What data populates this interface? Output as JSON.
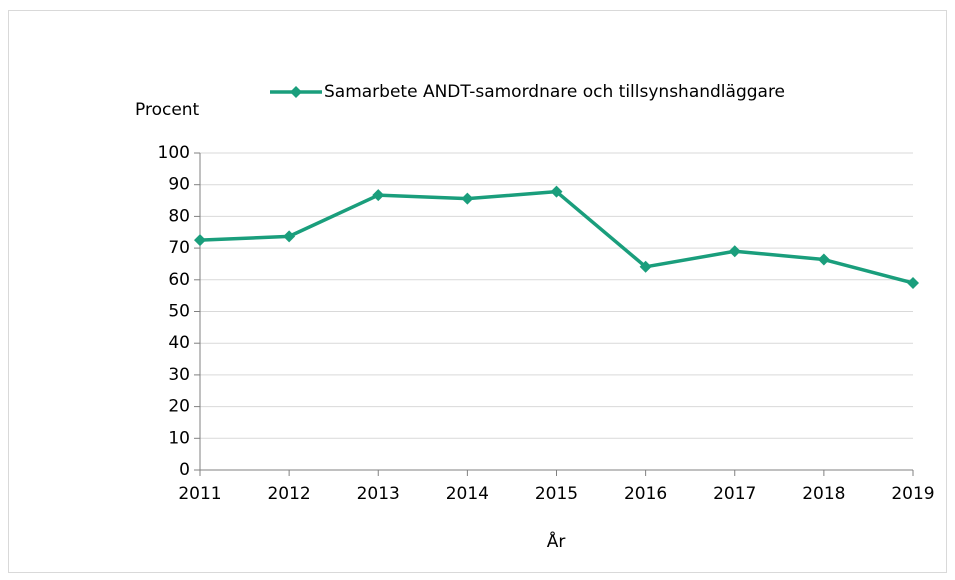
{
  "chart_data": {
    "type": "line",
    "y_label": "Procent",
    "x_label": "År",
    "x": [
      2011,
      2012,
      2013,
      2014,
      2015,
      2016,
      2017,
      2018,
      2019
    ],
    "series": [
      {
        "name": "Samarbete ANDT-samordnare och tillsynshandläggare",
        "color": "#1a9e7c",
        "values": [
          72.5,
          73.7,
          86.7,
          85.6,
          87.8,
          64.1,
          69.0,
          66.4,
          59.0
        ]
      }
    ],
    "xlim": [
      2011,
      2019
    ],
    "xticks": [
      2011,
      2012,
      2013,
      2014,
      2015,
      2016,
      2017,
      2018,
      2019
    ],
    "ylim": [
      0,
      100
    ],
    "yticks": [
      0,
      10,
      20,
      30,
      40,
      50,
      60,
      70,
      80,
      90,
      100
    ],
    "grid": true,
    "legend": "top"
  }
}
